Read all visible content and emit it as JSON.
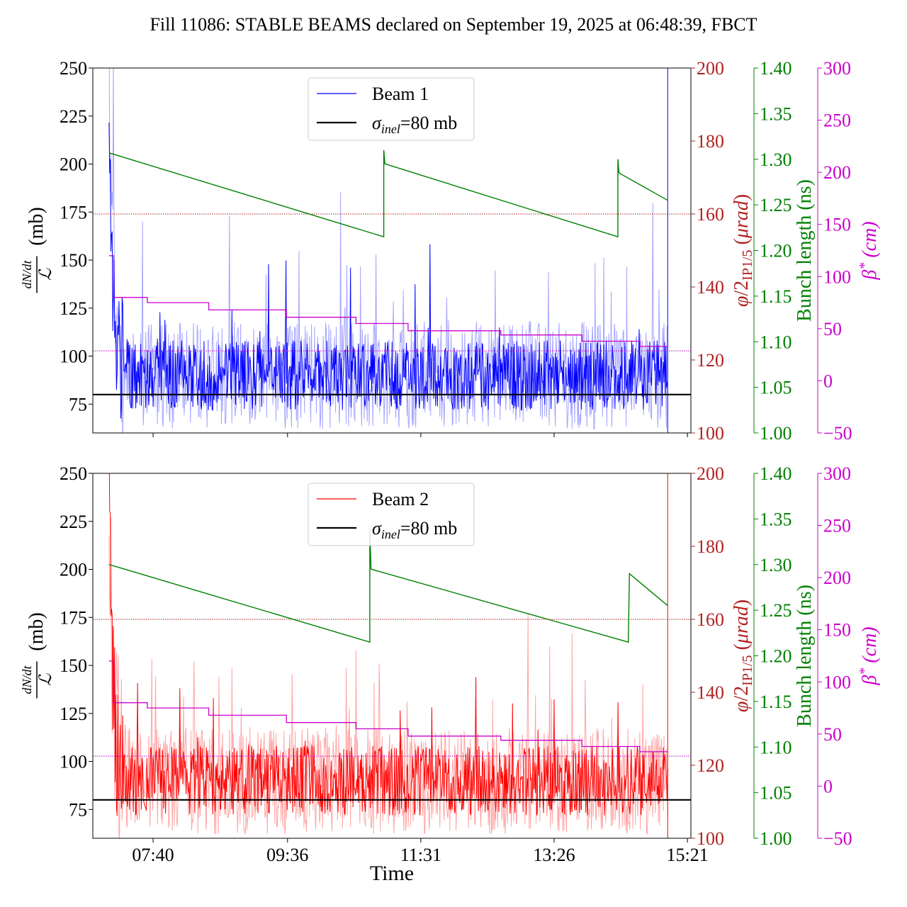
{
  "title": "Fill 11086: STABLE BEAMS declared on September 19, 2025 at 06:48:39, FBCT",
  "xlabel": "Time",
  "x_ticks": [
    "07:40",
    "09:36",
    "11:31",
    "13:26",
    "15:21"
  ],
  "colors": {
    "beam1": "#0000ff",
    "beam2": "#ff0000",
    "sigma": "#000000",
    "phi": "#b22222",
    "bunch": "#008000",
    "beta": "#cc00cc"
  },
  "axes": {
    "left_ylabel": "dN/dt / L (mb)",
    "left_ylim": [
      60,
      250
    ],
    "left_ticks": [
      75,
      100,
      125,
      150,
      175,
      200,
      225,
      250
    ],
    "phi_ylabel": "φ/2IP1/5 (μrad)",
    "phi_ylim": [
      100,
      200
    ],
    "phi_ticks": [
      100,
      120,
      140,
      160,
      180,
      200
    ],
    "bunch_ylabel": "Bunch length (ns)",
    "bunch_ylim": [
      1.0,
      1.4
    ],
    "bunch_ticks": [
      "1.00",
      "1.05",
      "1.10",
      "1.15",
      "1.20",
      "1.25",
      "1.30",
      "1.35",
      "1.40"
    ],
    "beta_ylabel": "β* (cm)",
    "beta_ylim": [
      -50,
      300
    ],
    "beta_ticks": [
      "−50",
      "0",
      "50",
      "100",
      "150",
      "200",
      "250",
      "300"
    ]
  },
  "chart_data": [
    {
      "type": "line",
      "panel": "top",
      "legend": [
        "Beam 1",
        "σinel=80 mb"
      ],
      "xlim": [
        "06:48",
        "15:24"
      ],
      "sigma_inel_mb": 80,
      "phi_urad_constant": 160,
      "phi_urad_ref_dotted": 122.5,
      "beam_series": {
        "name": "Beam 1",
        "start": "07:02",
        "end": "15:04",
        "peak_mb": 250,
        "settled_mean_mb": 90,
        "settled_max_mb": 145
      },
      "bunch_length_ns": [
        [
          "07:02",
          1.307
        ],
        [
          "10:59",
          1.215
        ],
        [
          "10:59",
          1.31
        ],
        [
          "11:00",
          1.295
        ],
        [
          "14:21",
          1.215
        ],
        [
          "14:21",
          1.3
        ],
        [
          "14:22",
          1.285
        ],
        [
          "15:04",
          1.255
        ]
      ],
      "beta_star_cm": [
        [
          "07:02",
          120
        ],
        [
          "07:06",
          80
        ],
        [
          "07:35",
          75
        ],
        [
          "08:28",
          68
        ],
        [
          "09:35",
          61
        ],
        [
          "10:35",
          55
        ],
        [
          "11:20",
          48
        ],
        [
          "12:40",
          44
        ],
        [
          "13:50",
          38
        ],
        [
          "14:40",
          33
        ],
        [
          "15:04",
          33
        ]
      ]
    },
    {
      "type": "line",
      "panel": "bottom",
      "legend": [
        "Beam 2",
        "σinel=80 mb"
      ],
      "xlim": [
        "06:48",
        "15:24"
      ],
      "sigma_inel_mb": 80,
      "phi_urad_constant": 160,
      "phi_urad_ref_dotted": 122.5,
      "beam_series": {
        "name": "Beam 2",
        "start": "07:02",
        "end": "15:04",
        "peak_mb": 250,
        "settled_mean_mb": 90,
        "settled_max_mb": 135
      },
      "bunch_length_ns": [
        [
          "07:02",
          1.3
        ],
        [
          "10:47",
          1.215
        ],
        [
          "10:47",
          1.34
        ],
        [
          "10:48",
          1.295
        ],
        [
          "14:30",
          1.215
        ],
        [
          "14:31",
          1.29
        ],
        [
          "15:04",
          1.255
        ]
      ],
      "beta_star_cm": [
        [
          "07:02",
          120
        ],
        [
          "07:06",
          80
        ],
        [
          "07:35",
          75
        ],
        [
          "08:28",
          68
        ],
        [
          "09:35",
          61
        ],
        [
          "10:35",
          55
        ],
        [
          "11:20",
          48
        ],
        [
          "12:40",
          44
        ],
        [
          "13:50",
          38
        ],
        [
          "14:40",
          33
        ],
        [
          "15:04",
          33
        ]
      ]
    }
  ]
}
